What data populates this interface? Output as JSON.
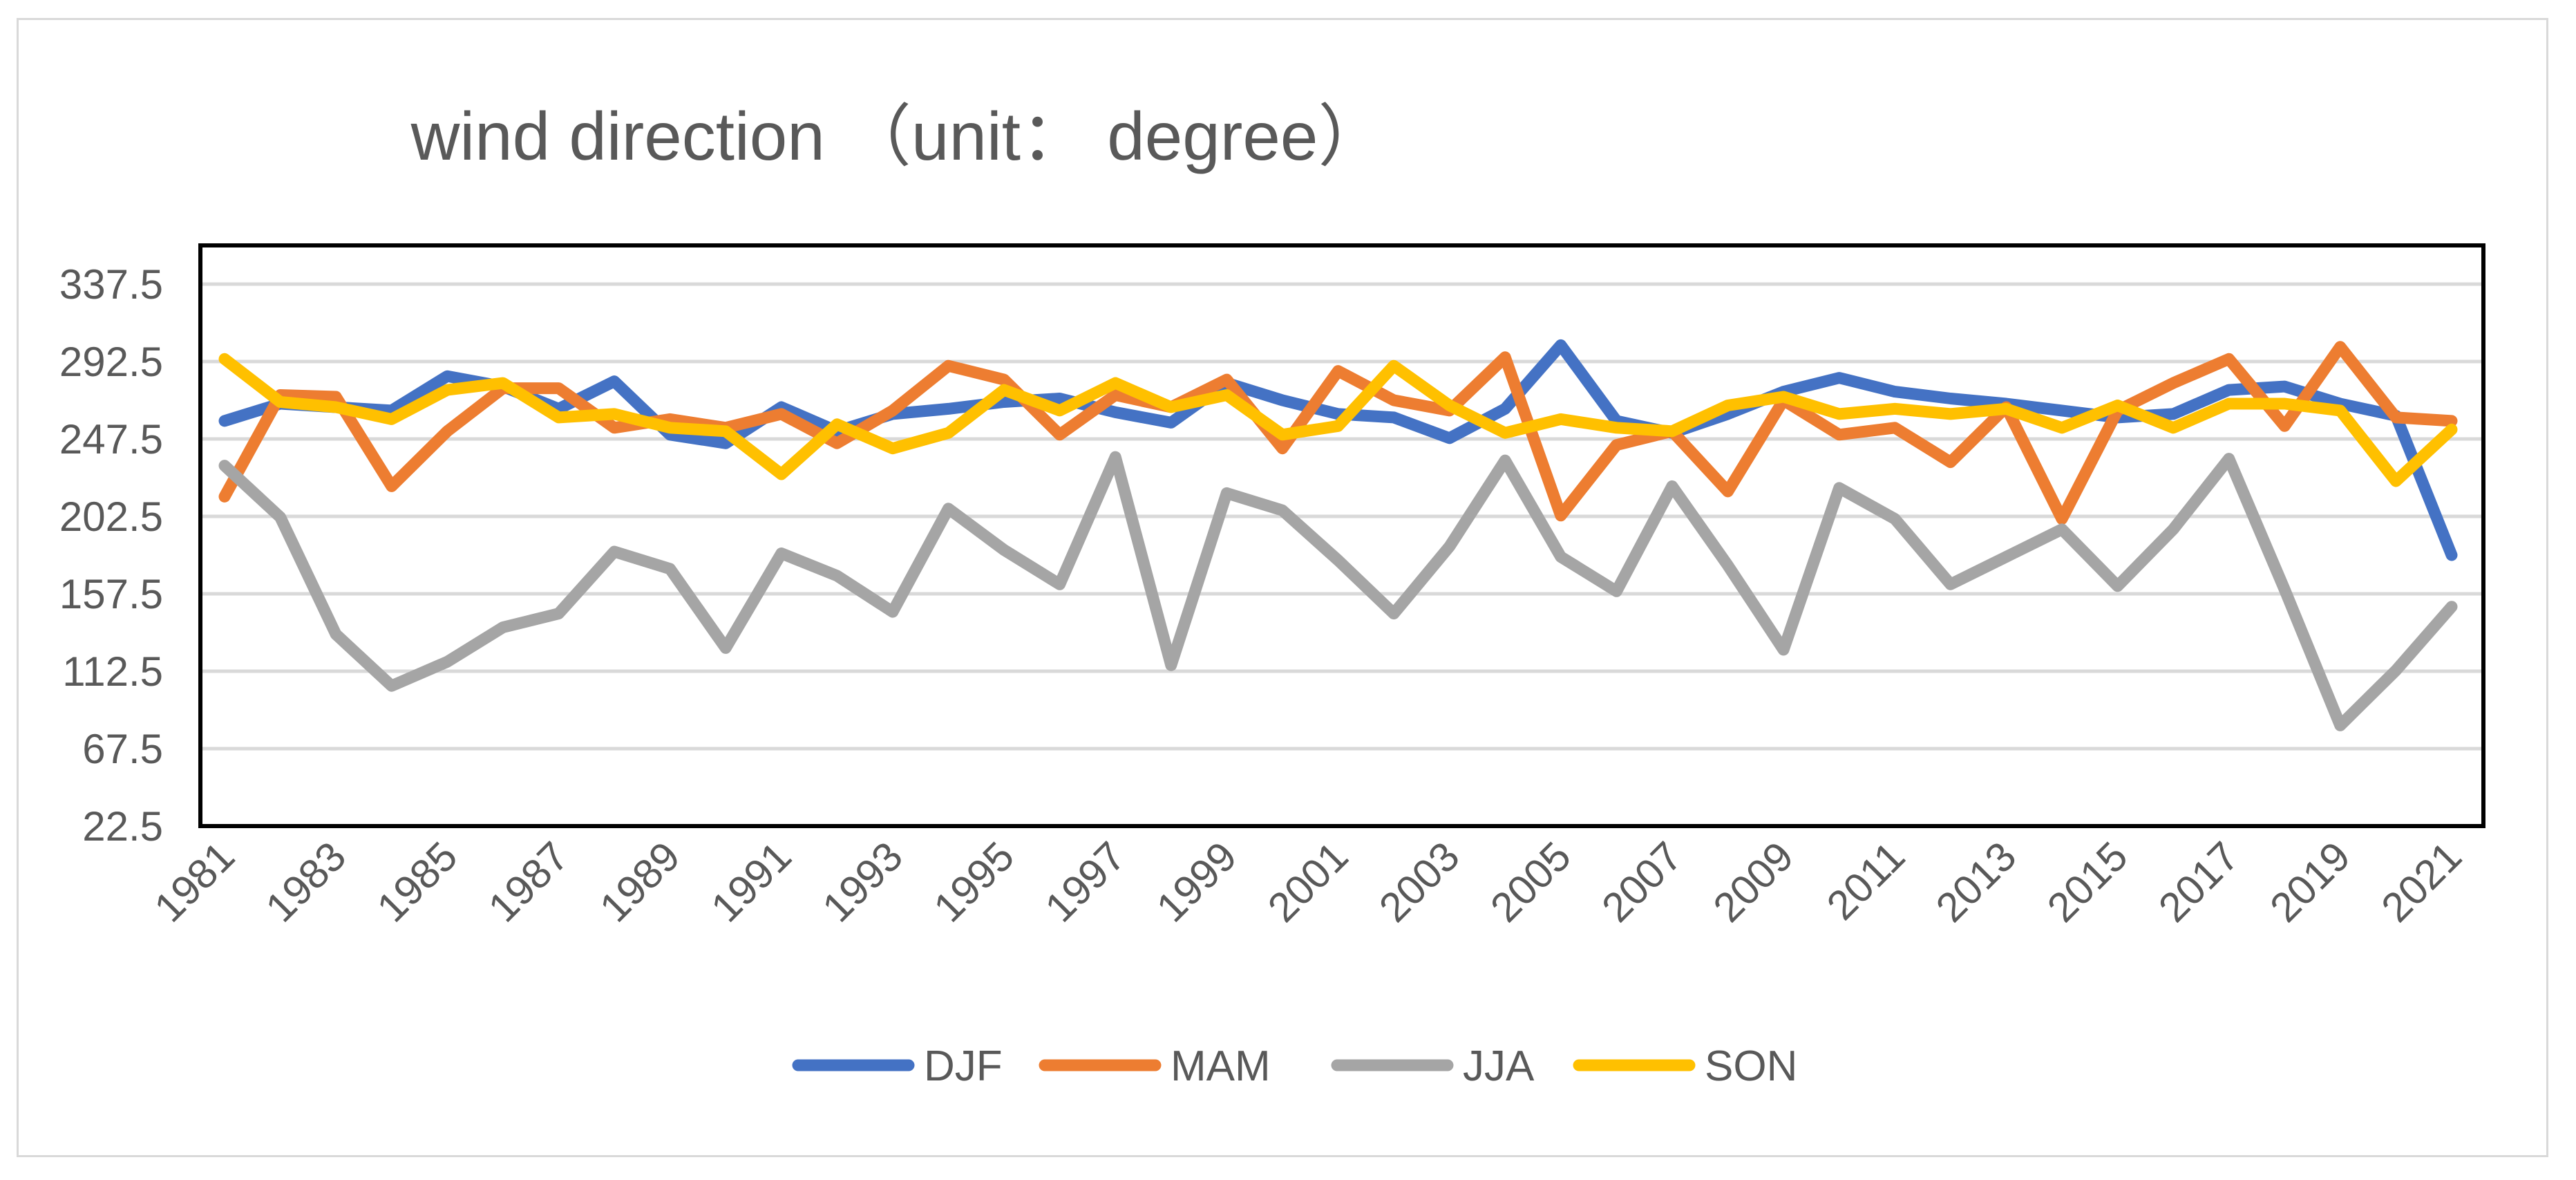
{
  "chart_data": {
    "type": "line",
    "title": "wind direction （unit： degree）",
    "xlabel": "",
    "ylabel": "",
    "ylim": [
      22.5,
      360
    ],
    "yticks": [
      "22.5",
      "67.5",
      "112.5",
      "157.5",
      "202.5",
      "247.5",
      "292.5",
      "337.5"
    ],
    "x_tick_labels": [
      "1981",
      "1983",
      "1985",
      "1987",
      "1989",
      "1991",
      "1993",
      "1995",
      "1997",
      "1999",
      "2001",
      "2003",
      "2005",
      "2007",
      "2009",
      "2011",
      "2013",
      "2015",
      "2017",
      "2019",
      "2021"
    ],
    "x": [
      1981,
      1982,
      1983,
      1984,
      1985,
      1986,
      1987,
      1988,
      1989,
      1990,
      1991,
      1992,
      1993,
      1994,
      1995,
      1996,
      1997,
      1998,
      1999,
      2000,
      2001,
      2002,
      2003,
      2004,
      2005,
      2006,
      2007,
      2008,
      2009,
      2010,
      2011,
      2012,
      2013,
      2014,
      2015,
      2016,
      2017,
      2018,
      2019,
      2020,
      2021
    ],
    "grid": true,
    "legend_position": "bottom",
    "series": [
      {
        "name": "DJF",
        "color": "#4472c4",
        "values": [
          258,
          268,
          266,
          264,
          284,
          278,
          265,
          281,
          250,
          245,
          266,
          252,
          262,
          265,
          269,
          271,
          263,
          257,
          280,
          270,
          262,
          260,
          248,
          265,
          302,
          258,
          251,
          262,
          275,
          283,
          275,
          271,
          268,
          264,
          260,
          262,
          276,
          278,
          268,
          261,
          180
        ]
      },
      {
        "name": "MAM",
        "color": "#ed7d31",
        "values": [
          214,
          273,
          272,
          220,
          252,
          277,
          277,
          254,
          259,
          254,
          262,
          245,
          264,
          290,
          282,
          250,
          273,
          266,
          282,
          242,
          287,
          270,
          264,
          295,
          203,
          244,
          252,
          217,
          270,
          250,
          254,
          234,
          266,
          201,
          264,
          280,
          294,
          255,
          301,
          260,
          258
        ]
      },
      {
        "name": "JJA",
        "color": "#a5a5a5",
        "values": [
          232,
          202,
          134,
          104,
          118,
          138,
          146,
          182,
          172,
          126,
          181,
          168,
          147,
          207,
          183,
          163,
          237,
          116,
          216,
          206,
          177,
          146,
          185,
          235,
          179,
          159,
          220,
          174,
          125,
          219,
          201,
          163,
          179,
          195,
          162,
          195,
          236,
          160,
          81,
          113,
          150
        ]
      },
      {
        "name": "SON",
        "color": "#ffc000",
        "values": [
          294,
          269,
          266,
          259,
          276,
          280,
          260,
          262,
          254,
          252,
          227,
          256,
          242,
          251,
          276,
          264,
          280,
          266,
          273,
          250,
          255,
          290,
          267,
          251,
          259,
          254,
          252,
          267,
          272,
          262,
          265,
          262,
          265,
          254,
          267,
          254,
          268,
          268,
          264,
          223,
          253
        ]
      }
    ]
  }
}
